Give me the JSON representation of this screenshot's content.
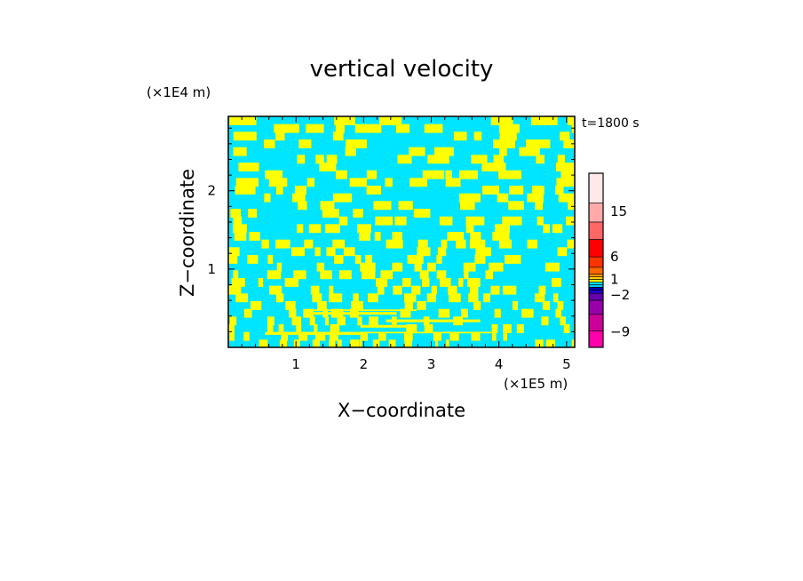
{
  "chart_data": {
    "type": "heatmap",
    "title": "vertical velocity",
    "xlabel": "X−coordinate",
    "ylabel": "Z−coordinate",
    "x_unit_label": "(×1E5 m)",
    "y_unit_label": "(×1E4 m)",
    "time_label": "t=1800 s",
    "xlim": [
      0,
      5.12
    ],
    "ylim": [
      0,
      2.95
    ],
    "x_ticks": [
      1,
      2,
      3,
      4,
      5
    ],
    "y_ticks": [
      1,
      2
    ],
    "x_tick_labels": [
      "1",
      "2",
      "3",
      "4",
      "5"
    ],
    "y_tick_labels": [
      "1",
      "2"
    ],
    "dominant_colors": {
      "positive": "#ffff00",
      "negative": "#00e5ff"
    },
    "colorbar": {
      "labels": [
        {
          "text": "15",
          "level_index": 6
        },
        {
          "text": "6",
          "level_index": 4
        },
        {
          "text": "1",
          "level_index": 3
        },
        {
          "text": "−2",
          "level_index": 2
        },
        {
          "text": "−9",
          "level_index": 0
        }
      ],
      "bands_bottom_to_top": [
        "#ff00aa",
        "#cc0099",
        "#9900aa",
        "#6600aa",
        "#2200cc",
        "#0000aa",
        "#00ccff",
        "#00e5ff",
        "#ffff00",
        "#ffcc00",
        "#ff9900",
        "#ff6600",
        "#ff3300",
        "#ff0000",
        "#ff6666",
        "#ffaaaa",
        "#ffe8e8"
      ]
    }
  }
}
